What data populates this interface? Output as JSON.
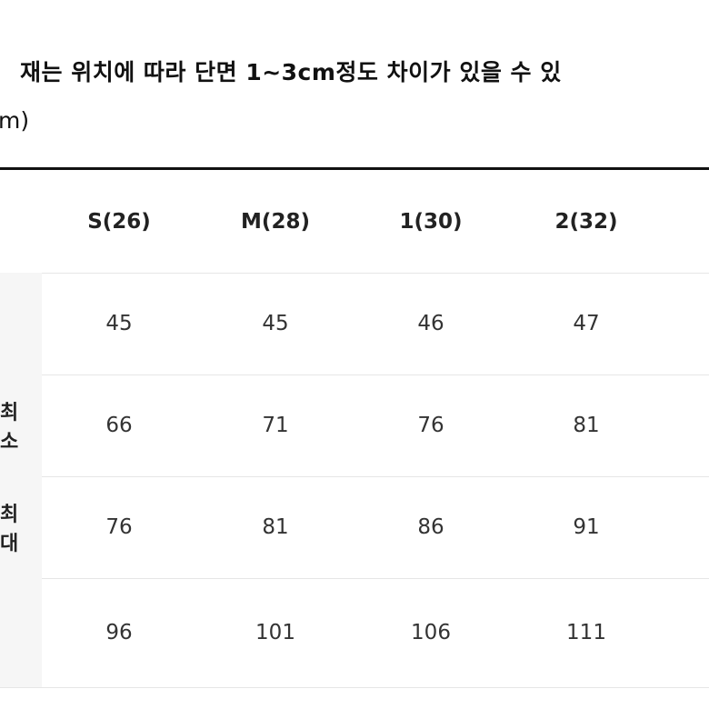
{
  "header": {
    "title": "재는 위치에 따라 단면 1~3cm정도 차이가 있을 수 있",
    "unit": "m)"
  },
  "table": {
    "columns": [
      "S(26)",
      "M(28)",
      "1(30)",
      "2(32)"
    ],
    "rows": [
      {
        "cells": [
          45,
          45,
          46,
          47
        ]
      },
      {
        "label": "최소",
        "cells": [
          66,
          71,
          76,
          81
        ]
      },
      {
        "label": "최대",
        "cells": [
          76,
          81,
          86,
          91
        ]
      },
      {
        "cells": [
          96,
          101,
          106,
          111
        ]
      }
    ]
  }
}
